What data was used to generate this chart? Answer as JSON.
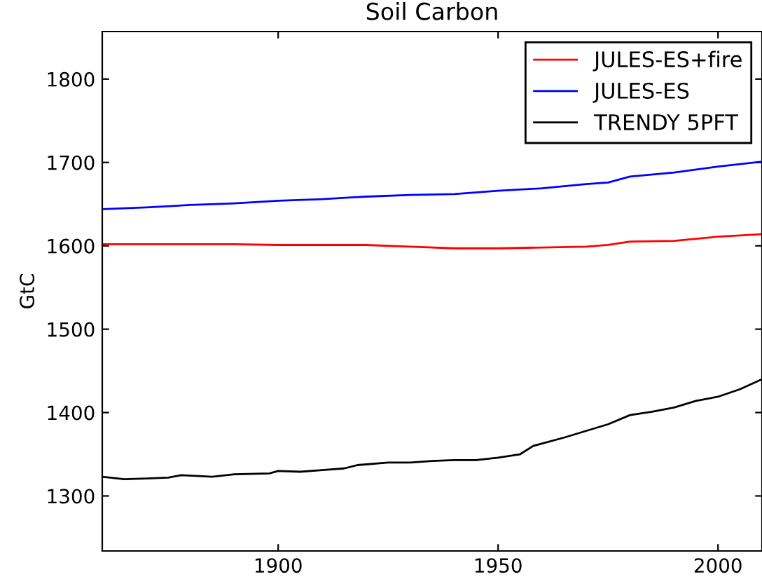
{
  "chart_data": {
    "type": "line",
    "title": "Soil Carbon",
    "ylabel": "GtC",
    "xlim": [
      1860,
      2010
    ],
    "xticks": [
      1900,
      1950,
      2000
    ],
    "ylim": [
      1234,
      1857
    ],
    "yticks": [
      1300,
      1400,
      1500,
      1600,
      1700,
      1800
    ],
    "grid": false,
    "legend": "top right",
    "marker": "none",
    "line_style": "solid",
    "series": [
      {
        "name": "JULES-ES+fire",
        "color": "#ff0000",
        "x": [
          1860,
          1870,
          1880,
          1890,
          1900,
          1910,
          1920,
          1930,
          1940,
          1950,
          1960,
          1970,
          1975,
          1980,
          1990,
          2000,
          2010
        ],
        "values": [
          1602,
          1602,
          1602,
          1602,
          1601,
          1601,
          1601,
          1599,
          1597,
          1597,
          1598,
          1599,
          1601,
          1605,
          1606,
          1611,
          1614
        ]
      },
      {
        "name": "JULES-ES",
        "color": "#0000ff",
        "x": [
          1860,
          1870,
          1880,
          1890,
          1900,
          1910,
          1920,
          1930,
          1940,
          1950,
          1960,
          1970,
          1975,
          1980,
          1990,
          2000,
          2010
        ],
        "values": [
          1644,
          1646,
          1649,
          1651,
          1654,
          1656,
          1659,
          1661,
          1662,
          1666,
          1669,
          1674,
          1676,
          1683,
          1688,
          1695,
          1701
        ]
      },
      {
        "name": "TRENDY 5PFT",
        "color": "#000000",
        "x": [
          1860,
          1865,
          1870,
          1875,
          1878,
          1885,
          1890,
          1898,
          1900,
          1905,
          1910,
          1915,
          1918,
          1925,
          1930,
          1935,
          1940,
          1945,
          1950,
          1955,
          1958,
          1965,
          1970,
          1975,
          1980,
          1985,
          1990,
          1995,
          2000,
          2005,
          2010
        ],
        "values": [
          1323,
          1320,
          1321,
          1322,
          1325,
          1323,
          1326,
          1327,
          1330,
          1329,
          1331,
          1333,
          1337,
          1340,
          1340,
          1342,
          1343,
          1343,
          1346,
          1350,
          1360,
          1370,
          1378,
          1386,
          1397,
          1401,
          1406,
          1414,
          1419,
          1428,
          1440
        ]
      }
    ]
  }
}
